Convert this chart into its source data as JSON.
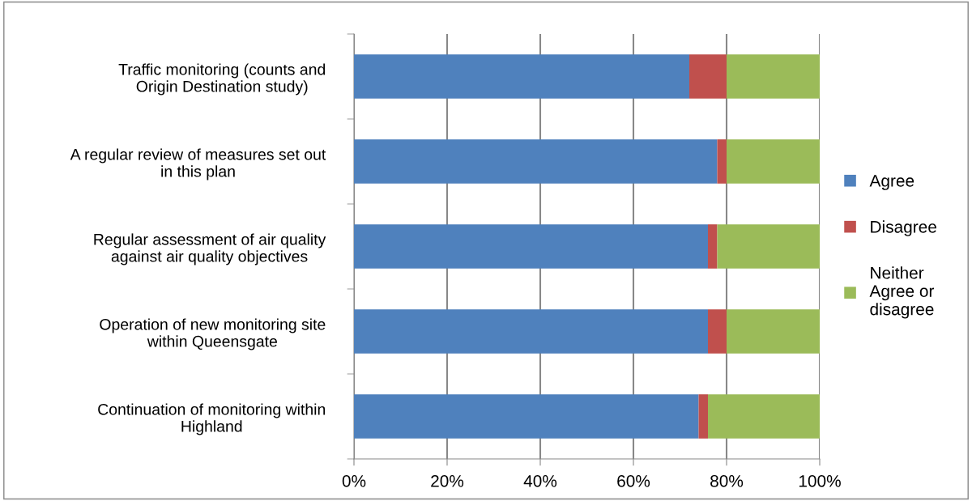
{
  "chart_data": {
    "type": "bar",
    "orientation": "horizontal",
    "stacked": true,
    "categories": [
      "Traffic monitoring (counts and\nOrigin Destination study)",
      "A regular review of measures set out\nin this plan",
      "Regular assessment of air quality\nagainst air quality objectives",
      "Operation of new monitoring site\nwithin Queensgate",
      "Continuation of monitoring within\nHighland"
    ],
    "series": [
      {
        "name": "Agree",
        "color": "#4f81bd",
        "values": [
          72,
          78,
          76,
          76,
          74
        ]
      },
      {
        "name": "Disagree",
        "color": "#c0504d",
        "values": [
          8,
          2,
          2,
          4,
          2
        ]
      },
      {
        "name": "Neither\nAgree or\ndisagree",
        "color": "#9bbb59",
        "values": [
          20,
          20,
          22,
          20,
          24
        ]
      }
    ],
    "xlim": [
      0,
      100
    ],
    "xticks": [
      {
        "value": 0,
        "label": "0%"
      },
      {
        "value": 20,
        "label": "20%"
      },
      {
        "value": 40,
        "label": "40%"
      },
      {
        "value": 60,
        "label": "60%"
      },
      {
        "value": 80,
        "label": "80%"
      },
      {
        "value": 100,
        "label": "100%"
      }
    ],
    "grid": "x",
    "legend": "right"
  }
}
